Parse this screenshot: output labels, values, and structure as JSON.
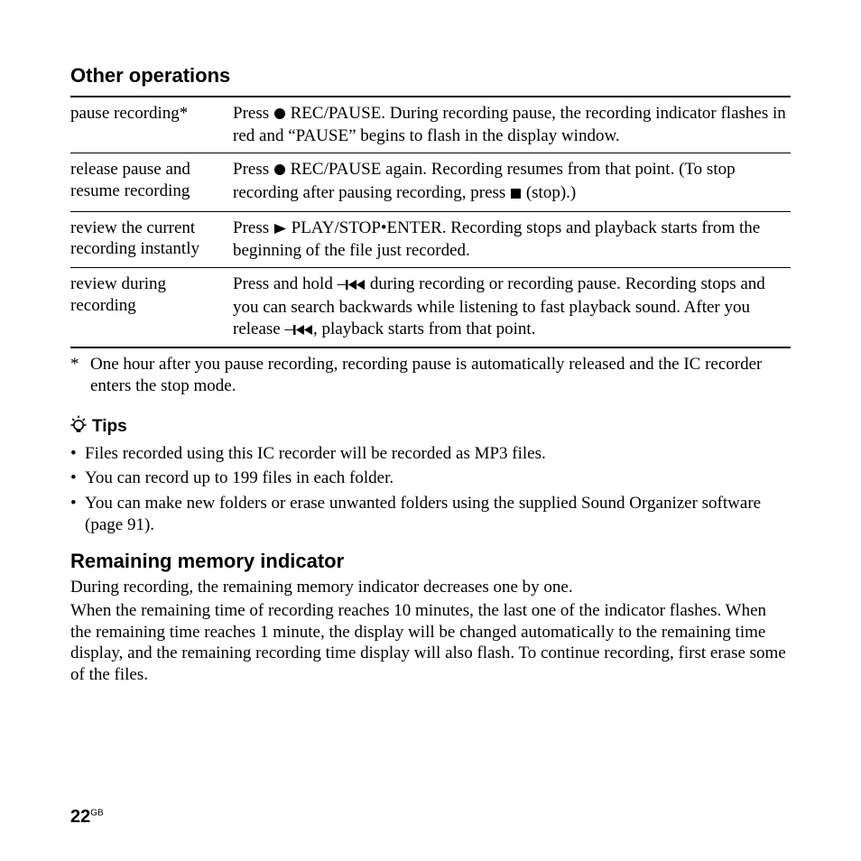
{
  "heading": "Other operations",
  "table": {
    "rows": [
      {
        "label": "pause recording*",
        "desc_pre": "Press ",
        "icon": "record",
        "desc_post": " REC/PAUSE. During recording pause, the recording indicator flashes in red and “PAUSE” begins to flash in the display window."
      },
      {
        "label": "release pause and resume recording",
        "desc_pre": "Press ",
        "icon": "record",
        "desc_mid": " REC/PAUSE again. Recording resumes from that point. (To stop recording after pausing recording, press ",
        "icon2": "stop",
        "desc_post": " (stop).)"
      },
      {
        "label": "review the current recording instantly",
        "desc_pre": "Press ",
        "icon": "play",
        "desc_post": " PLAY/STOP•ENTER. Recording stops and playback starts from the beginning of the file just recorded."
      },
      {
        "label": "review during recording",
        "desc_pre": "Press and hold –",
        "icon": "prev",
        "desc_mid": " during recording or recording pause. Recording stops and you can search backwards while listening to fast playback sound. After you release –",
        "icon2": "prev",
        "desc_post": ", playback starts from that point."
      }
    ]
  },
  "footnote_marker": "*",
  "footnote": "One hour after you pause recording, recording pause is automatically released and the IC recorder enters the stop mode.",
  "tips_heading": "Tips",
  "tips": [
    "Files recorded using this IC recorder will be recorded as MP3 files.",
    "You can record up to 199 files in each folder.",
    "You can make new folders or erase unwanted folders using the supplied Sound Organizer software (page 91)."
  ],
  "subheading": "Remaining memory indicator",
  "para1": "During recording, the remaining memory indicator decreases one by one.",
  "para2": "When the remaining time of recording reaches 10 minutes, the last one of the indicator flashes. When the remaining time reaches 1 minute, the display will be changed automatically to the remaining time display, and the remaining recording time display will also flash. To continue recording, first erase some of the files.",
  "page_number": "22",
  "page_region": "GB"
}
